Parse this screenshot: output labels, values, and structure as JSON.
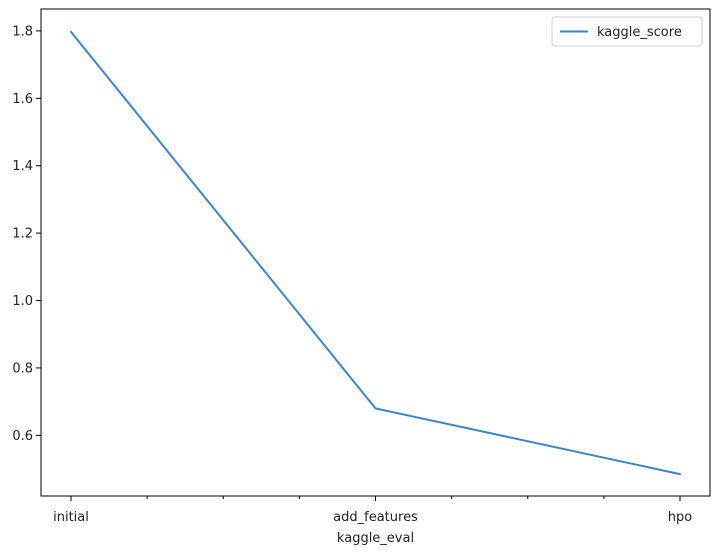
{
  "chart_data": {
    "type": "line",
    "categories": [
      "initial",
      "add_features",
      "hpo"
    ],
    "series": [
      {
        "name": "kaggle_score",
        "values": [
          1.797,
          0.68,
          0.485
        ],
        "color": "#3d86c6"
      }
    ],
    "xlabel": "kaggle_eval",
    "ylabel": "",
    "ylim": [
      0.42,
      1.865
    ],
    "yticks": [
      0.6,
      0.8,
      1.0,
      1.2,
      1.4,
      1.6,
      1.8
    ],
    "ytick_labels": [
      "0.6",
      "0.8",
      "1.0",
      "1.2",
      "1.4",
      "1.6",
      "1.8"
    ],
    "x_minor_ticks_per_interval": 3,
    "grid": false,
    "legend_position": "top-right"
  }
}
